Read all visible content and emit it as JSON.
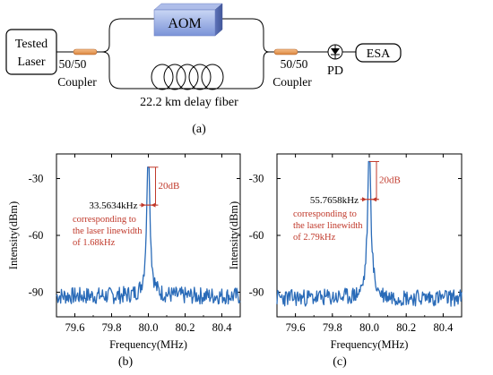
{
  "setup": {
    "laser_line1": "Tested",
    "laser_line2": "Laser",
    "coupler_ratio": "50/50",
    "coupler_name": "Coupler",
    "aom_label": "AOM",
    "fiber_label": "22.2 km delay fiber",
    "pd_label": "PD",
    "esa_label": "ESA",
    "caption": "(a)"
  },
  "chart_data": [
    {
      "type": "line",
      "caption": "(b)",
      "xlabel": "Frequency(MHz)",
      "ylabel": "Intensity(dBm)",
      "xlim": [
        79.5,
        80.5
      ],
      "ylim": [
        -103,
        -17
      ],
      "xticks": [
        79.6,
        79.8,
        80.0,
        80.2,
        80.4
      ],
      "xtick_labels": [
        "79.6",
        "79.8",
        "80.0",
        "80.2",
        "80.4"
      ],
      "yticks": [
        -30,
        -60,
        -90
      ],
      "ytick_labels": [
        "-30",
        "-60",
        "-90"
      ],
      "peak": {
        "x": 80.0,
        "y": -24
      },
      "noise_floor": -92,
      "width_label": "33.5634kHz",
      "drop_label": "20dB",
      "note_lines": [
        "corresponding to",
        "the laser linewidth",
        "of 1.68kHz"
      ],
      "line_color": "#2a6bb8",
      "annotation_color": "#c0392b"
    },
    {
      "type": "line",
      "caption": "(c)",
      "xlabel": "Frequency(MHz)",
      "ylabel": "Intensity(dBm)",
      "xlim": [
        79.5,
        80.5
      ],
      "ylim": [
        -103,
        -17
      ],
      "xticks": [
        79.6,
        79.8,
        80.0,
        80.2,
        80.4
      ],
      "xtick_labels": [
        "79.6",
        "79.8",
        "80.0",
        "80.2",
        "80.4"
      ],
      "yticks": [
        -30,
        -60,
        -90
      ],
      "ytick_labels": [
        "-30",
        "-60",
        "-90"
      ],
      "peak": {
        "x": 80.0,
        "y": -21
      },
      "noise_floor": -93,
      "width_label": "55.7658kHz",
      "drop_label": "20dB",
      "note_lines": [
        "corresponding to",
        "the laser linewidth",
        "of 2.79kHz"
      ],
      "line_color": "#2a6bb8",
      "annotation_color": "#c0392b"
    }
  ]
}
